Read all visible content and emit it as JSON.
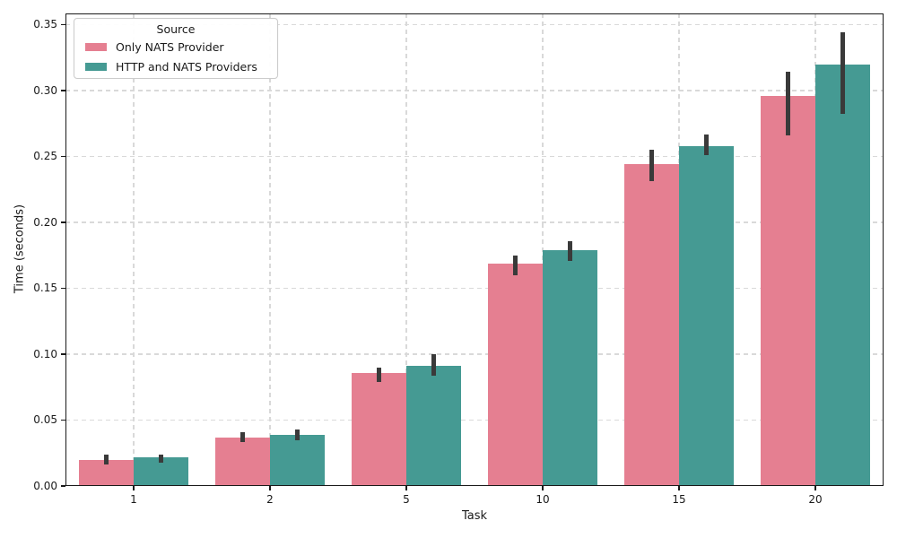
{
  "chart_data": {
    "type": "bar",
    "title": "",
    "xlabel": "Task",
    "ylabel": "Time (seconds)",
    "categories": [
      "1",
      "2",
      "5",
      "10",
      "15",
      "20"
    ],
    "series": [
      {
        "name": "Only NATS Provider",
        "color": "#e57f91",
        "values": [
          0.02,
          0.037,
          0.086,
          0.169,
          0.244,
          0.296
        ],
        "ci": [
          [
            0.016,
            0.024
          ],
          [
            0.033,
            0.041
          ],
          [
            0.079,
            0.09
          ],
          [
            0.16,
            0.175
          ],
          [
            0.231,
            0.255
          ],
          [
            0.266,
            0.314
          ]
        ]
      },
      {
        "name": "HTTP and NATS Providers",
        "color": "#459a93",
        "values": [
          0.022,
          0.039,
          0.091,
          0.179,
          0.258,
          0.32
        ],
        "ci": [
          [
            0.018,
            0.024
          ],
          [
            0.035,
            0.043
          ],
          [
            0.084,
            0.1
          ],
          [
            0.171,
            0.186
          ],
          [
            0.251,
            0.267
          ],
          [
            0.282,
            0.344
          ]
        ]
      }
    ],
    "yticks": [
      0.0,
      0.05,
      0.1,
      0.15,
      0.2,
      0.25,
      0.3,
      0.35
    ],
    "ylim": [
      0,
      0.35
    ],
    "grid": "dashed, horizontal and vertical",
    "error_bar_color": "#3a3a3a",
    "legend": {
      "title": "Source",
      "position": "upper left"
    }
  }
}
